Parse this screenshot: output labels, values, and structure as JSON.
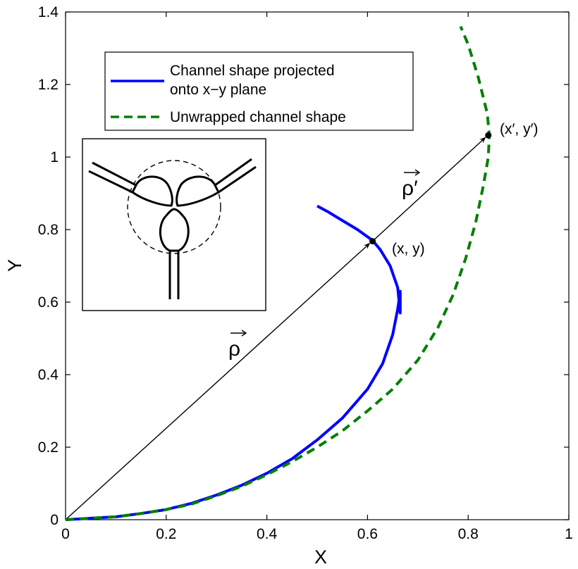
{
  "chart_data": {
    "type": "line",
    "title": "",
    "xlabel": "X",
    "ylabel": "Y",
    "xlim": [
      0,
      1
    ],
    "ylim": [
      0,
      1.4
    ],
    "xticks": [
      0,
      0.2,
      0.4,
      0.6,
      0.8,
      1
    ],
    "xtick_labels": [
      "0",
      "0.2",
      "0.4",
      "0.6",
      "0.8",
      "1"
    ],
    "yticks": [
      0,
      0.2,
      0.4,
      0.6,
      0.8,
      1,
      1.2,
      1.4
    ],
    "ytick_labels": [
      "0",
      "0.2",
      "0.4",
      "0.6",
      "0.8",
      "1",
      "1.2",
      "1.4"
    ],
    "grid": false,
    "legend_position": "top-left",
    "series": [
      {
        "name": "Channel shape projected onto x−y plane",
        "legend_lines": [
          "Channel shape projected",
          "onto x−y plane"
        ],
        "color": "#0000ff",
        "style": "solid",
        "x": [
          0,
          0.05,
          0.1,
          0.15,
          0.2,
          0.25,
          0.3,
          0.35,
          0.4,
          0.45,
          0.5,
          0.55,
          0.6,
          0.63,
          0.65,
          0.66,
          0.665,
          0.665,
          0.66,
          0.645,
          0.625,
          0.61,
          0.58,
          0.55,
          0.52,
          0.5
        ],
        "y": [
          0,
          0.004,
          0.008,
          0.017,
          0.028,
          0.045,
          0.068,
          0.095,
          0.128,
          0.168,
          0.22,
          0.28,
          0.36,
          0.43,
          0.51,
          0.58,
          0.63,
          0.57,
          0.64,
          0.7,
          0.745,
          0.77,
          0.8,
          0.825,
          0.85,
          0.865
        ]
      },
      {
        "name": "Unwrapped channel shape",
        "legend_lines": [
          "Unwrapped channel shape"
        ],
        "color": "#007f00",
        "style": "dashed",
        "x": [
          0,
          0.05,
          0.1,
          0.15,
          0.2,
          0.25,
          0.3,
          0.35,
          0.4,
          0.45,
          0.5,
          0.55,
          0.6,
          0.65,
          0.7,
          0.74,
          0.77,
          0.795,
          0.815,
          0.83,
          0.84,
          0.842,
          0.838,
          0.82,
          0.8,
          0.785
        ],
        "y": [
          0,
          0.004,
          0.008,
          0.017,
          0.028,
          0.043,
          0.066,
          0.092,
          0.124,
          0.16,
          0.2,
          0.245,
          0.3,
          0.36,
          0.44,
          0.53,
          0.62,
          0.72,
          0.82,
          0.92,
          1.0,
          1.06,
          1.12,
          1.22,
          1.31,
          1.36
        ]
      }
    ],
    "annotations": {
      "point_xy": {
        "label": "(x, y)",
        "x": 0.61,
        "y": 0.768
      },
      "point_xy_prime": {
        "label": "(x′, y′)",
        "x": 0.84,
        "y": 1.06
      },
      "rho_label": "ρ",
      "rho_prime_label": "ρ′",
      "inset": "schematic of a three-lobed channel with three straight channel arms and a dashed circle"
    }
  }
}
